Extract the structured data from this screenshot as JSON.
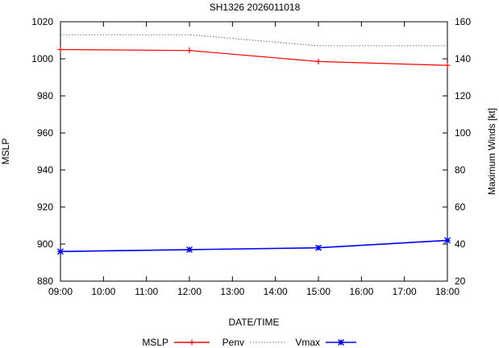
{
  "chart_data": {
    "type": "line",
    "title": "SH1326 2026011018",
    "xlabel": "DATE/TIME",
    "ylabel": "MSLP",
    "y2label": "Maximum Winds [kt]",
    "x_ticks": [
      "09:00",
      "10:00",
      "11:00",
      "12:00",
      "13:00",
      "14:00",
      "15:00",
      "16:00",
      "17:00",
      "18:00"
    ],
    "x_hours": [
      9,
      10,
      11,
      12,
      13,
      14,
      15,
      16,
      17,
      18
    ],
    "xlim": [
      9,
      18
    ],
    "ylim": [
      880,
      1020
    ],
    "y_ticks": [
      880,
      900,
      920,
      940,
      960,
      980,
      1000,
      1020
    ],
    "y2lim": [
      20,
      160
    ],
    "y2_ticks": [
      20,
      40,
      60,
      80,
      100,
      120,
      140,
      160
    ],
    "grid": false,
    "legend": [
      "MSLP",
      "Penv",
      "Vmax"
    ],
    "series": [
      {
        "name": "MSLP",
        "axis": "y",
        "color": "#ff0000",
        "style": "solid",
        "marker": "plus",
        "x": [
          9,
          12,
          15,
          18
        ],
        "values": [
          1005,
          1004.5,
          998.5,
          996.5
        ]
      },
      {
        "name": "Penv",
        "axis": "y",
        "color": "#444444",
        "style": "dotted",
        "marker": "none",
        "x": [
          9,
          12,
          15,
          18
        ],
        "values": [
          1013,
          1013,
          1007,
          1007
        ]
      },
      {
        "name": "Vmax",
        "axis": "y2",
        "color": "#0000ff",
        "style": "solid",
        "marker": "star",
        "x": [
          9,
          12,
          15,
          18
        ],
        "values": [
          36,
          37,
          38,
          42
        ]
      }
    ]
  }
}
